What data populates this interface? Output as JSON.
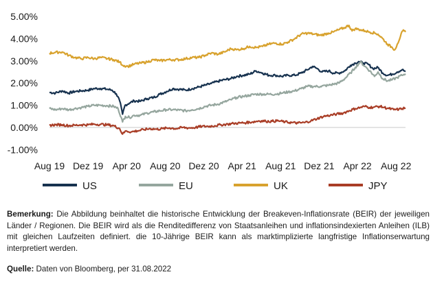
{
  "chart_data": {
    "type": "line",
    "x_tick_labels": [
      "Aug 19",
      "Dez 19",
      "Apr 20",
      "Aug 20",
      "Dez 20",
      "Apr 21",
      "Aug 21",
      "Dez 21",
      "Apr 22",
      "Aug 22"
    ],
    "x_tick_dates": [
      "2019-08-01",
      "2019-12-01",
      "2020-04-01",
      "2020-08-01",
      "2020-12-01",
      "2021-04-01",
      "2021-08-01",
      "2021-12-01",
      "2022-04-01",
      "2022-08-01"
    ],
    "y_tick_labels": [
      "5.00%",
      "4.00%",
      "3.00%",
      "2.00%",
      "1.00%",
      "0.00%",
      "-1.00%"
    ],
    "y_ticks": [
      5,
      4,
      3,
      2,
      1,
      0,
      -1
    ],
    "ylim": [
      -1,
      5
    ],
    "x_range": [
      "2019-08-01",
      "2022-08-31"
    ],
    "legend_position": "bottom",
    "series": [
      {
        "name": "US",
        "color": "#17324f",
        "points": [
          [
            "2019-08-01",
            1.58
          ],
          [
            "2019-08-20",
            1.55
          ],
          [
            "2019-09-10",
            1.65
          ],
          [
            "2019-10-01",
            1.55
          ],
          [
            "2019-10-20",
            1.62
          ],
          [
            "2019-11-10",
            1.65
          ],
          [
            "2019-12-01",
            1.68
          ],
          [
            "2019-12-20",
            1.75
          ],
          [
            "2020-01-10",
            1.76
          ],
          [
            "2020-01-31",
            1.72
          ],
          [
            "2020-02-15",
            1.68
          ],
          [
            "2020-02-28",
            1.52
          ],
          [
            "2020-03-10",
            1.2
          ],
          [
            "2020-03-19",
            0.6
          ],
          [
            "2020-03-27",
            1.0
          ],
          [
            "2020-04-10",
            1.1
          ],
          [
            "2020-04-25",
            1.2
          ],
          [
            "2020-05-15",
            1.18
          ],
          [
            "2020-06-05",
            1.3
          ],
          [
            "2020-06-25",
            1.35
          ],
          [
            "2020-07-15",
            1.5
          ],
          [
            "2020-08-05",
            1.62
          ],
          [
            "2020-08-25",
            1.75
          ],
          [
            "2020-09-15",
            1.72
          ],
          [
            "2020-10-05",
            1.68
          ],
          [
            "2020-10-25",
            1.75
          ],
          [
            "2020-11-15",
            1.82
          ],
          [
            "2020-12-05",
            1.9
          ],
          [
            "2020-12-25",
            1.98
          ],
          [
            "2021-01-15",
            2.08
          ],
          [
            "2021-02-05",
            2.15
          ],
          [
            "2021-02-25",
            2.2
          ],
          [
            "2021-03-15",
            2.3
          ],
          [
            "2021-04-05",
            2.35
          ],
          [
            "2021-04-25",
            2.4
          ],
          [
            "2021-05-15",
            2.55
          ],
          [
            "2021-06-05",
            2.45
          ],
          [
            "2021-06-25",
            2.35
          ],
          [
            "2021-07-15",
            2.35
          ],
          [
            "2021-08-05",
            2.3
          ],
          [
            "2021-08-25",
            2.35
          ],
          [
            "2021-09-15",
            2.35
          ],
          [
            "2021-10-05",
            2.45
          ],
          [
            "2021-10-25",
            2.6
          ],
          [
            "2021-11-10",
            2.75
          ],
          [
            "2021-11-25",
            2.65
          ],
          [
            "2021-12-10",
            2.5
          ],
          [
            "2021-12-31",
            2.55
          ],
          [
            "2022-01-15",
            2.45
          ],
          [
            "2022-02-01",
            2.45
          ],
          [
            "2022-02-20",
            2.55
          ],
          [
            "2022-03-10",
            2.8
          ],
          [
            "2022-03-25",
            2.9
          ],
          [
            "2022-04-05",
            2.97
          ],
          [
            "2022-04-20",
            2.9
          ],
          [
            "2022-05-05",
            2.85
          ],
          [
            "2022-05-20",
            2.65
          ],
          [
            "2022-06-05",
            2.7
          ],
          [
            "2022-06-20",
            2.45
          ],
          [
            "2022-07-05",
            2.35
          ],
          [
            "2022-07-20",
            2.4
          ],
          [
            "2022-08-05",
            2.5
          ],
          [
            "2022-08-20",
            2.6
          ],
          [
            "2022-08-31",
            2.52
          ]
        ]
      },
      {
        "name": "EU",
        "color": "#95a69e",
        "points": [
          [
            "2019-08-01",
            0.85
          ],
          [
            "2019-08-20",
            0.8
          ],
          [
            "2019-09-10",
            0.85
          ],
          [
            "2019-10-01",
            0.8
          ],
          [
            "2019-10-20",
            0.85
          ],
          [
            "2019-11-10",
            0.9
          ],
          [
            "2019-12-01",
            0.95
          ],
          [
            "2019-12-20",
            1.0
          ],
          [
            "2020-01-10",
            1.0
          ],
          [
            "2020-01-31",
            0.98
          ],
          [
            "2020-02-20",
            0.95
          ],
          [
            "2020-03-05",
            0.85
          ],
          [
            "2020-03-15",
            0.45
          ],
          [
            "2020-03-19",
            0.25
          ],
          [
            "2020-03-28",
            0.5
          ],
          [
            "2020-04-10",
            0.45
          ],
          [
            "2020-04-25",
            0.55
          ],
          [
            "2020-05-15",
            0.55
          ],
          [
            "2020-06-05",
            0.65
          ],
          [
            "2020-06-25",
            0.7
          ],
          [
            "2020-07-15",
            0.75
          ],
          [
            "2020-08-05",
            0.8
          ],
          [
            "2020-08-25",
            0.8
          ],
          [
            "2020-09-15",
            0.78
          ],
          [
            "2020-10-05",
            0.75
          ],
          [
            "2020-10-25",
            0.8
          ],
          [
            "2020-11-15",
            0.85
          ],
          [
            "2020-12-05",
            0.95
          ],
          [
            "2020-12-25",
            1.0
          ],
          [
            "2021-01-15",
            1.05
          ],
          [
            "2021-02-05",
            1.15
          ],
          [
            "2021-02-25",
            1.25
          ],
          [
            "2021-03-15",
            1.35
          ],
          [
            "2021-04-05",
            1.4
          ],
          [
            "2021-04-25",
            1.45
          ],
          [
            "2021-05-15",
            1.5
          ],
          [
            "2021-06-05",
            1.5
          ],
          [
            "2021-06-25",
            1.5
          ],
          [
            "2021-07-15",
            1.5
          ],
          [
            "2021-08-05",
            1.55
          ],
          [
            "2021-08-25",
            1.6
          ],
          [
            "2021-09-15",
            1.65
          ],
          [
            "2021-10-05",
            1.75
          ],
          [
            "2021-10-25",
            1.85
          ],
          [
            "2021-11-15",
            1.85
          ],
          [
            "2021-12-05",
            1.85
          ],
          [
            "2021-12-31",
            1.9
          ],
          [
            "2022-01-15",
            1.95
          ],
          [
            "2022-02-01",
            2.0
          ],
          [
            "2022-02-20",
            2.2
          ],
          [
            "2022-03-10",
            2.45
          ],
          [
            "2022-03-25",
            2.7
          ],
          [
            "2022-04-10",
            2.95
          ],
          [
            "2022-04-25",
            2.75
          ],
          [
            "2022-05-10",
            2.55
          ],
          [
            "2022-05-25",
            2.3
          ],
          [
            "2022-06-05",
            2.5
          ],
          [
            "2022-06-20",
            2.2
          ],
          [
            "2022-07-05",
            2.1
          ],
          [
            "2022-07-20",
            2.15
          ],
          [
            "2022-08-05",
            2.25
          ],
          [
            "2022-08-20",
            2.35
          ],
          [
            "2022-08-31",
            2.42
          ]
        ]
      },
      {
        "name": "UK",
        "color": "#d8a22e",
        "points": [
          [
            "2019-08-01",
            3.35
          ],
          [
            "2019-08-20",
            3.38
          ],
          [
            "2019-09-10",
            3.4
          ],
          [
            "2019-10-01",
            3.25
          ],
          [
            "2019-10-20",
            3.15
          ],
          [
            "2019-11-10",
            3.1
          ],
          [
            "2019-12-01",
            3.15
          ],
          [
            "2019-12-20",
            3.1
          ],
          [
            "2020-01-10",
            3.15
          ],
          [
            "2020-01-31",
            3.1
          ],
          [
            "2020-02-20",
            3.05
          ],
          [
            "2020-03-10",
            2.95
          ],
          [
            "2020-03-20",
            2.8
          ],
          [
            "2020-04-05",
            2.75
          ],
          [
            "2020-04-25",
            2.85
          ],
          [
            "2020-05-15",
            2.9
          ],
          [
            "2020-06-05",
            2.95
          ],
          [
            "2020-06-25",
            3.05
          ],
          [
            "2020-07-15",
            3.0
          ],
          [
            "2020-08-05",
            3.05
          ],
          [
            "2020-08-25",
            3.05
          ],
          [
            "2020-09-15",
            3.05
          ],
          [
            "2020-10-05",
            3.1
          ],
          [
            "2020-10-25",
            3.15
          ],
          [
            "2020-11-15",
            3.15
          ],
          [
            "2020-12-05",
            3.25
          ],
          [
            "2020-12-25",
            3.35
          ],
          [
            "2021-01-15",
            3.3
          ],
          [
            "2021-02-05",
            3.4
          ],
          [
            "2021-02-25",
            3.55
          ],
          [
            "2021-03-15",
            3.5
          ],
          [
            "2021-04-05",
            3.55
          ],
          [
            "2021-04-25",
            3.65
          ],
          [
            "2021-05-15",
            3.6
          ],
          [
            "2021-06-05",
            3.65
          ],
          [
            "2021-06-25",
            3.75
          ],
          [
            "2021-07-15",
            3.8
          ],
          [
            "2021-08-05",
            3.75
          ],
          [
            "2021-08-25",
            3.85
          ],
          [
            "2021-09-15",
            4.0
          ],
          [
            "2021-10-05",
            4.2
          ],
          [
            "2021-10-25",
            4.25
          ],
          [
            "2021-11-15",
            4.2
          ],
          [
            "2021-12-05",
            4.15
          ],
          [
            "2021-12-31",
            4.25
          ],
          [
            "2022-01-15",
            4.3
          ],
          [
            "2022-02-01",
            4.4
          ],
          [
            "2022-02-20",
            4.5
          ],
          [
            "2022-03-05",
            4.6
          ],
          [
            "2022-03-15",
            4.35
          ],
          [
            "2022-03-25",
            4.45
          ],
          [
            "2022-04-10",
            4.4
          ],
          [
            "2022-04-25",
            4.35
          ],
          [
            "2022-05-10",
            4.3
          ],
          [
            "2022-05-25",
            4.25
          ],
          [
            "2022-06-05",
            4.2
          ],
          [
            "2022-06-20",
            4.0
          ],
          [
            "2022-07-05",
            3.75
          ],
          [
            "2022-07-20",
            3.6
          ],
          [
            "2022-07-28",
            3.5
          ],
          [
            "2022-08-05",
            3.75
          ],
          [
            "2022-08-15",
            4.1
          ],
          [
            "2022-08-22",
            4.35
          ],
          [
            "2022-08-31",
            4.3
          ]
        ]
      },
      {
        "name": "JPY",
        "color": "#a93d26",
        "points": [
          [
            "2019-08-01",
            0.1
          ],
          [
            "2019-08-20",
            0.12
          ],
          [
            "2019-09-10",
            0.12
          ],
          [
            "2019-10-01",
            0.08
          ],
          [
            "2019-10-20",
            0.1
          ],
          [
            "2019-11-10",
            0.12
          ],
          [
            "2019-12-01",
            0.12
          ],
          [
            "2019-12-20",
            0.15
          ],
          [
            "2020-01-10",
            0.14
          ],
          [
            "2020-01-31",
            0.12
          ],
          [
            "2020-02-20",
            0.08
          ],
          [
            "2020-03-10",
            -0.05
          ],
          [
            "2020-03-19",
            -0.3
          ],
          [
            "2020-03-30",
            -0.15
          ],
          [
            "2020-04-15",
            -0.2
          ],
          [
            "2020-05-05",
            -0.15
          ],
          [
            "2020-05-25",
            -0.1
          ],
          [
            "2020-06-15",
            -0.05
          ],
          [
            "2020-07-05",
            -0.08
          ],
          [
            "2020-07-25",
            -0.05
          ],
          [
            "2020-08-15",
            -0.02
          ],
          [
            "2020-09-05",
            -0.05
          ],
          [
            "2020-09-25",
            0.0
          ],
          [
            "2020-10-15",
            -0.02
          ],
          [
            "2020-11-05",
            0.0
          ],
          [
            "2020-11-25",
            0.05
          ],
          [
            "2020-12-15",
            0.05
          ],
          [
            "2021-01-05",
            0.08
          ],
          [
            "2021-01-25",
            0.12
          ],
          [
            "2021-02-15",
            0.15
          ],
          [
            "2021-03-05",
            0.18
          ],
          [
            "2021-03-25",
            0.2
          ],
          [
            "2021-04-15",
            0.22
          ],
          [
            "2021-05-05",
            0.25
          ],
          [
            "2021-05-25",
            0.3
          ],
          [
            "2021-06-15",
            0.28
          ],
          [
            "2021-07-05",
            0.28
          ],
          [
            "2021-07-25",
            0.3
          ],
          [
            "2021-08-15",
            0.25
          ],
          [
            "2021-09-05",
            0.22
          ],
          [
            "2021-09-25",
            0.2
          ],
          [
            "2021-10-15",
            0.22
          ],
          [
            "2021-11-05",
            0.3
          ],
          [
            "2021-11-25",
            0.4
          ],
          [
            "2021-12-15",
            0.5
          ],
          [
            "2022-01-05",
            0.55
          ],
          [
            "2022-01-25",
            0.6
          ],
          [
            "2022-02-15",
            0.65
          ],
          [
            "2022-03-05",
            0.75
          ],
          [
            "2022-03-25",
            0.85
          ],
          [
            "2022-04-10",
            0.9
          ],
          [
            "2022-04-25",
            0.95
          ],
          [
            "2022-05-10",
            0.9
          ],
          [
            "2022-05-25",
            0.92
          ],
          [
            "2022-06-10",
            0.95
          ],
          [
            "2022-06-25",
            0.9
          ],
          [
            "2022-07-10",
            0.85
          ],
          [
            "2022-07-25",
            0.8
          ],
          [
            "2022-08-10",
            0.82
          ],
          [
            "2022-08-20",
            0.85
          ],
          [
            "2022-08-31",
            0.88
          ]
        ]
      }
    ]
  },
  "note": {
    "label": "Bemerkung:",
    "text": "Die Abbildung beinhaltet die historische Entwicklung der Breakeven-Inflationsrate (BEIR) der jeweiligen Länder / Regionen. Die BEIR wird als die Renditedifferenz von Staatsanleihen und inflationsindexierten Anleihen (ILB) mit gleichen Laufzeiten definiert. die 10-Jährige BEIR kann als marktimplizierte langfristige Inflationserwartung interpretiert werden."
  },
  "source": {
    "label": "Quelle:",
    "text": "Daten von Bloomberg, per 31.08.2022"
  }
}
